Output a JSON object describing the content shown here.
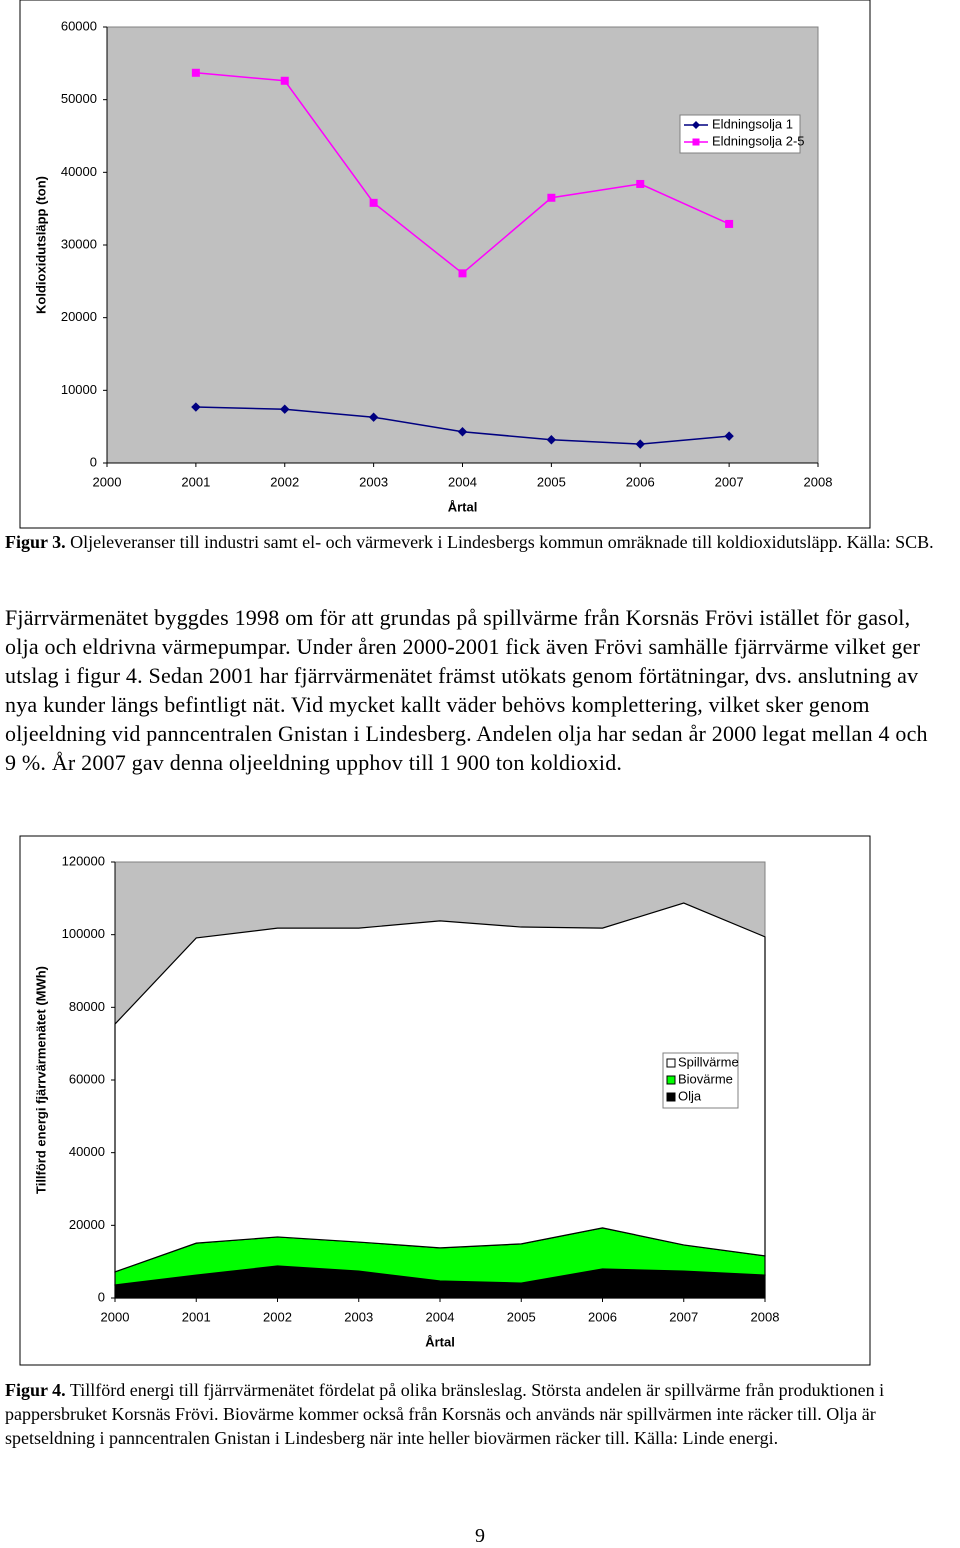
{
  "chart_data": [
    {
      "type": "line",
      "y_label": "Koldioxidutsläpp (ton)",
      "x_label": "Årtal",
      "x": [
        2001,
        2002,
        2003,
        2004,
        2005,
        2006,
        2007
      ],
      "xlim": [
        2000,
        2008
      ],
      "xticks": [
        2000,
        2001,
        2002,
        2003,
        2004,
        2005,
        2006,
        2007,
        2008
      ],
      "ylim": [
        0,
        60000
      ],
      "yticks": [
        0,
        10000,
        20000,
        30000,
        40000,
        50000,
        60000
      ],
      "grid": false,
      "legend": "right",
      "series": [
        {
          "name": "Eldningsolja 1",
          "color": "#000080",
          "marker": "diamond",
          "values": [
            7700,
            7400,
            6300,
            4300,
            3200,
            2600,
            3700
          ]
        },
        {
          "name": "Eldningsolja 2-5",
          "color": "#ff00ff",
          "marker": "square",
          "values": [
            53700,
            52600,
            35800,
            26100,
            36500,
            38400,
            32900
          ]
        }
      ]
    },
    {
      "type": "area",
      "stacked": true,
      "y_label": "Tillförd energi fjärrvärmenätet (MWh)",
      "x_label": "Årtal",
      "x": [
        2000,
        2001,
        2002,
        2003,
        2004,
        2005,
        2006,
        2007,
        2008
      ],
      "xlim": [
        2000,
        2008
      ],
      "xticks": [
        2000,
        2001,
        2002,
        2003,
        2004,
        2005,
        2006,
        2007,
        2008
      ],
      "ylim": [
        0,
        120000
      ],
      "yticks": [
        0,
        20000,
        40000,
        60000,
        80000,
        100000,
        120000
      ],
      "grid": false,
      "legend": "right",
      "series": [
        {
          "name": "Olja",
          "color": "#000000",
          "values": [
            3600,
            6300,
            8800,
            7400,
            4700,
            4100,
            8000,
            7400,
            6300
          ]
        },
        {
          "name": "Biovärme",
          "color": "#00ff00",
          "values": [
            3600,
            8800,
            8000,
            8000,
            9100,
            10800,
            11300,
            7200,
            5300
          ]
        },
        {
          "name": "Spillvärme",
          "color": "#ffffff",
          "values": [
            68200,
            84000,
            85000,
            86400,
            90000,
            87200,
            82500,
            94100,
            87800
          ]
        }
      ]
    }
  ],
  "captions": [
    {
      "label": "Figur 3.",
      "text": "Oljeleveranser till industri samt el- och värmeverk i Lindesbergs kommun omräknade till koldioxidutsläpp. Källa: SCB."
    },
    {
      "label": "Figur 4.",
      "text": "Tillförd energi till fjärrvärmenätet fördelat på olika bränsleslag. Största andelen är spillvärme från produktionen i pappersbruket Korsnäs Frövi. Biovärme kommer också från Korsnäs och används när spillvärmen inte räcker till. Olja är spetseldning i panncentralen Gnistan i Lindesberg när inte heller biovärmen räcker till. Källa: Linde energi."
    }
  ],
  "paragraph": "Fjärrvärmenätet byggdes 1998 om för att grundas på spillvärme från Korsnäs Frövi istället för gasol, olja och eldrivna värmepumpar. Under åren 2000-2001 fick även Frövi samhälle fjärrvärme vilket ger utslag i figur 4. Sedan 2001 har fjärrvärmenätet främst utökats genom förtätningar, dvs. anslutning av nya kunder längs befintligt nät. Vid mycket kallt väder behövs komplettering, vilket sker genom oljeeldning vid panncentralen Gnistan i Lindesberg. Andelen olja har sedan år 2000 legat mellan 4 och 9 %. År 2007 gav denna oljeeldning upphov till 1 900 ton koldioxid.",
  "page_number": "9"
}
